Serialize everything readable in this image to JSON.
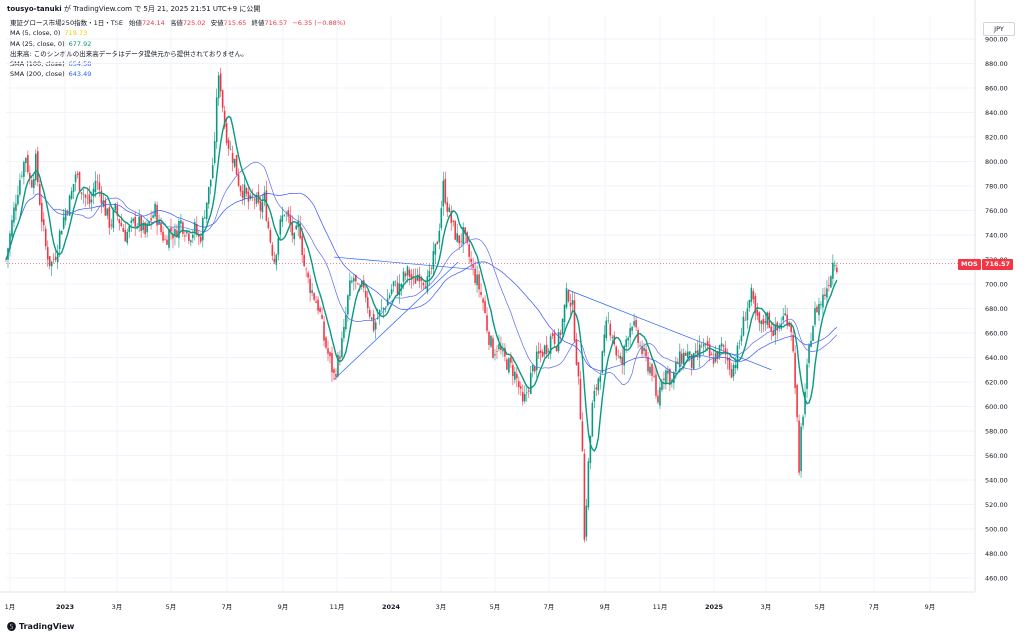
{
  "header": {
    "author": "tousyo-tanuki",
    "text": "が TradingView.com で 5月 21, 2025 21:51 UTC+9 に公開"
  },
  "legend": {
    "symbol": "東証グロース市場250指数・1日・TSE",
    "open_label": "始値",
    "open": "724.14",
    "high_label": "高値",
    "high": "725.02",
    "low_label": "安値",
    "low": "715.65",
    "close_label": "終値",
    "close": "716.57",
    "change": "−6.35 (−0.88%)",
    "ma5_label": "MA (5, close, 0)",
    "ma5_value": "719.73",
    "ma25_label": "MA (25, close, 0)",
    "ma25_value": "677.92",
    "volume_note": "出来高: このシンボルの出来高データはデータ提供元から提供されておりません。",
    "sma100_label": "SMA (100, close)",
    "sma100_value": "654.58",
    "sma200_label": "SMA (200, close)",
    "sma200_value": "643.49"
  },
  "price_axis": {
    "currency": "JPY",
    "badge_symbol": "MOS",
    "badge_price": "716.57"
  },
  "footer": {
    "brand": "TradingView"
  },
  "colors": {
    "up": "#089981",
    "down": "#f23645",
    "ma5": "#f7c600",
    "ma25": "#089981",
    "sma": "#2962ff",
    "grid": "#f0f3fa",
    "price_line": "#f23645"
  },
  "chart_data": {
    "type": "candlestick",
    "y_ticks": [
      "900.00",
      "880.00",
      "860.00",
      "840.00",
      "820.00",
      "800.00",
      "780.00",
      "760.00",
      "740.00",
      "720.00",
      "700.00",
      "680.00",
      "660.00",
      "640.00",
      "620.00",
      "600.00",
      "580.00",
      "560.00",
      "540.00",
      "520.00",
      "500.00",
      "480.00",
      "460.00"
    ],
    "x_ticks": [
      "1月",
      "2023",
      "3月",
      "5月",
      "7月",
      "9月",
      "11月",
      "2024",
      "3月",
      "5月",
      "7月",
      "9月",
      "11月",
      "2025",
      "3月",
      "5月",
      "7月",
      "9月"
    ],
    "ylim": [
      450,
      910
    ],
    "last_price": 716.57,
    "close_path": [
      [
        0,
        720
      ],
      [
        5,
        745
      ],
      [
        10,
        770
      ],
      [
        15,
        790
      ],
      [
        20,
        805
      ],
      [
        25,
        780
      ],
      [
        30,
        800
      ],
      [
        35,
        760
      ],
      [
        40,
        730
      ],
      [
        45,
        715
      ],
      [
        50,
        725
      ],
      [
        55,
        745
      ],
      [
        60,
        760
      ],
      [
        65,
        770
      ],
      [
        70,
        790
      ],
      [
        75,
        780
      ],
      [
        80,
        770
      ],
      [
        85,
        765
      ],
      [
        90,
        785
      ],
      [
        95,
        775
      ],
      [
        100,
        760
      ],
      [
        105,
        748
      ],
      [
        110,
        760
      ],
      [
        115,
        750
      ],
      [
        120,
        740
      ],
      [
        125,
        745
      ],
      [
        130,
        752
      ],
      [
        135,
        748
      ],
      [
        140,
        740
      ],
      [
        145,
        752
      ],
      [
        150,
        760
      ],
      [
        155,
        745
      ],
      [
        160,
        735
      ],
      [
        165,
        745
      ],
      [
        170,
        740
      ],
      [
        175,
        752
      ],
      [
        180,
        745
      ],
      [
        185,
        740
      ],
      [
        190,
        745
      ],
      [
        195,
        735
      ],
      [
        200,
        760
      ],
      [
        205,
        780
      ],
      [
        210,
        810
      ],
      [
        212,
        855
      ],
      [
        215,
        870
      ],
      [
        220,
        830
      ],
      [
        225,
        810
      ],
      [
        230,
        800
      ],
      [
        235,
        780
      ],
      [
        240,
        775
      ],
      [
        245,
        765
      ],
      [
        250,
        770
      ],
      [
        255,
        760
      ],
      [
        260,
        770
      ],
      [
        265,
        740
      ],
      [
        270,
        720
      ],
      [
        275,
        745
      ],
      [
        280,
        760
      ],
      [
        285,
        750
      ],
      [
        290,
        735
      ],
      [
        295,
        750
      ],
      [
        300,
        715
      ],
      [
        305,
        700
      ],
      [
        310,
        690
      ],
      [
        315,
        680
      ],
      [
        320,
        655
      ],
      [
        325,
        640
      ],
      [
        330,
        625
      ],
      [
        335,
        640
      ],
      [
        340,
        660
      ],
      [
        345,
        695
      ],
      [
        350,
        705
      ],
      [
        355,
        690
      ],
      [
        360,
        700
      ],
      [
        365,
        680
      ],
      [
        370,
        665
      ],
      [
        375,
        675
      ],
      [
        380,
        680
      ],
      [
        385,
        690
      ],
      [
        390,
        700
      ],
      [
        395,
        695
      ],
      [
        400,
        705
      ],
      [
        405,
        710
      ],
      [
        410,
        700
      ],
      [
        415,
        710
      ],
      [
        420,
        705
      ],
      [
        425,
        700
      ],
      [
        430,
        720
      ],
      [
        435,
        740
      ],
      [
        440,
        780
      ],
      [
        445,
        760
      ],
      [
        450,
        745
      ],
      [
        455,
        735
      ],
      [
        460,
        740
      ],
      [
        465,
        725
      ],
      [
        470,
        710
      ],
      [
        475,
        700
      ],
      [
        480,
        685
      ],
      [
        485,
        660
      ],
      [
        490,
        645
      ],
      [
        495,
        650
      ],
      [
        500,
        640
      ],
      [
        505,
        635
      ],
      [
        510,
        630
      ],
      [
        515,
        620
      ],
      [
        520,
        600
      ],
      [
        525,
        615
      ],
      [
        530,
        630
      ],
      [
        535,
        640
      ],
      [
        540,
        645
      ],
      [
        545,
        650
      ],
      [
        550,
        660
      ],
      [
        555,
        650
      ],
      [
        560,
        670
      ],
      [
        565,
        695
      ],
      [
        570,
        680
      ],
      [
        575,
        630
      ],
      [
        580,
        570
      ],
      [
        582,
        490
      ],
      [
        585,
        540
      ],
      [
        590,
        600
      ],
      [
        595,
        620
      ],
      [
        600,
        640
      ],
      [
        605,
        670
      ],
      [
        610,
        660
      ],
      [
        615,
        640
      ],
      [
        620,
        635
      ],
      [
        625,
        660
      ],
      [
        630,
        670
      ],
      [
        635,
        655
      ],
      [
        640,
        645
      ],
      [
        645,
        635
      ],
      [
        650,
        630
      ],
      [
        655,
        600
      ],
      [
        660,
        625
      ],
      [
        665,
        630
      ],
      [
        670,
        620
      ],
      [
        675,
        635
      ],
      [
        680,
        640
      ],
      [
        685,
        645
      ],
      [
        690,
        635
      ],
      [
        695,
        640
      ],
      [
        700,
        650
      ],
      [
        705,
        645
      ],
      [
        710,
        638
      ],
      [
        715,
        642
      ],
      [
        720,
        648
      ],
      [
        725,
        640
      ],
      [
        730,
        630
      ],
      [
        735,
        640
      ],
      [
        740,
        660
      ],
      [
        745,
        680
      ],
      [
        750,
        690
      ],
      [
        755,
        670
      ],
      [
        760,
        665
      ],
      [
        765,
        675
      ],
      [
        770,
        665
      ],
      [
        775,
        660
      ],
      [
        780,
        670
      ],
      [
        785,
        675
      ],
      [
        790,
        665
      ],
      [
        795,
        610
      ],
      [
        798,
        540
      ],
      [
        800,
        580
      ],
      [
        805,
        620
      ],
      [
        810,
        660
      ],
      [
        815,
        680
      ],
      [
        820,
        685
      ],
      [
        825,
        695
      ],
      [
        830,
        710
      ],
      [
        833,
        722
      ],
      [
        836,
        716.57
      ]
    ],
    "overlays": [
      {
        "name": "MA (5, close, 0)",
        "value": 719.73
      },
      {
        "name": "MA (25, close, 0)",
        "value": 677.92
      },
      {
        "name": "SMA (100, close)",
        "value": 654.58
      },
      {
        "name": "SMA (200, close)",
        "value": 643.49
      }
    ]
  }
}
